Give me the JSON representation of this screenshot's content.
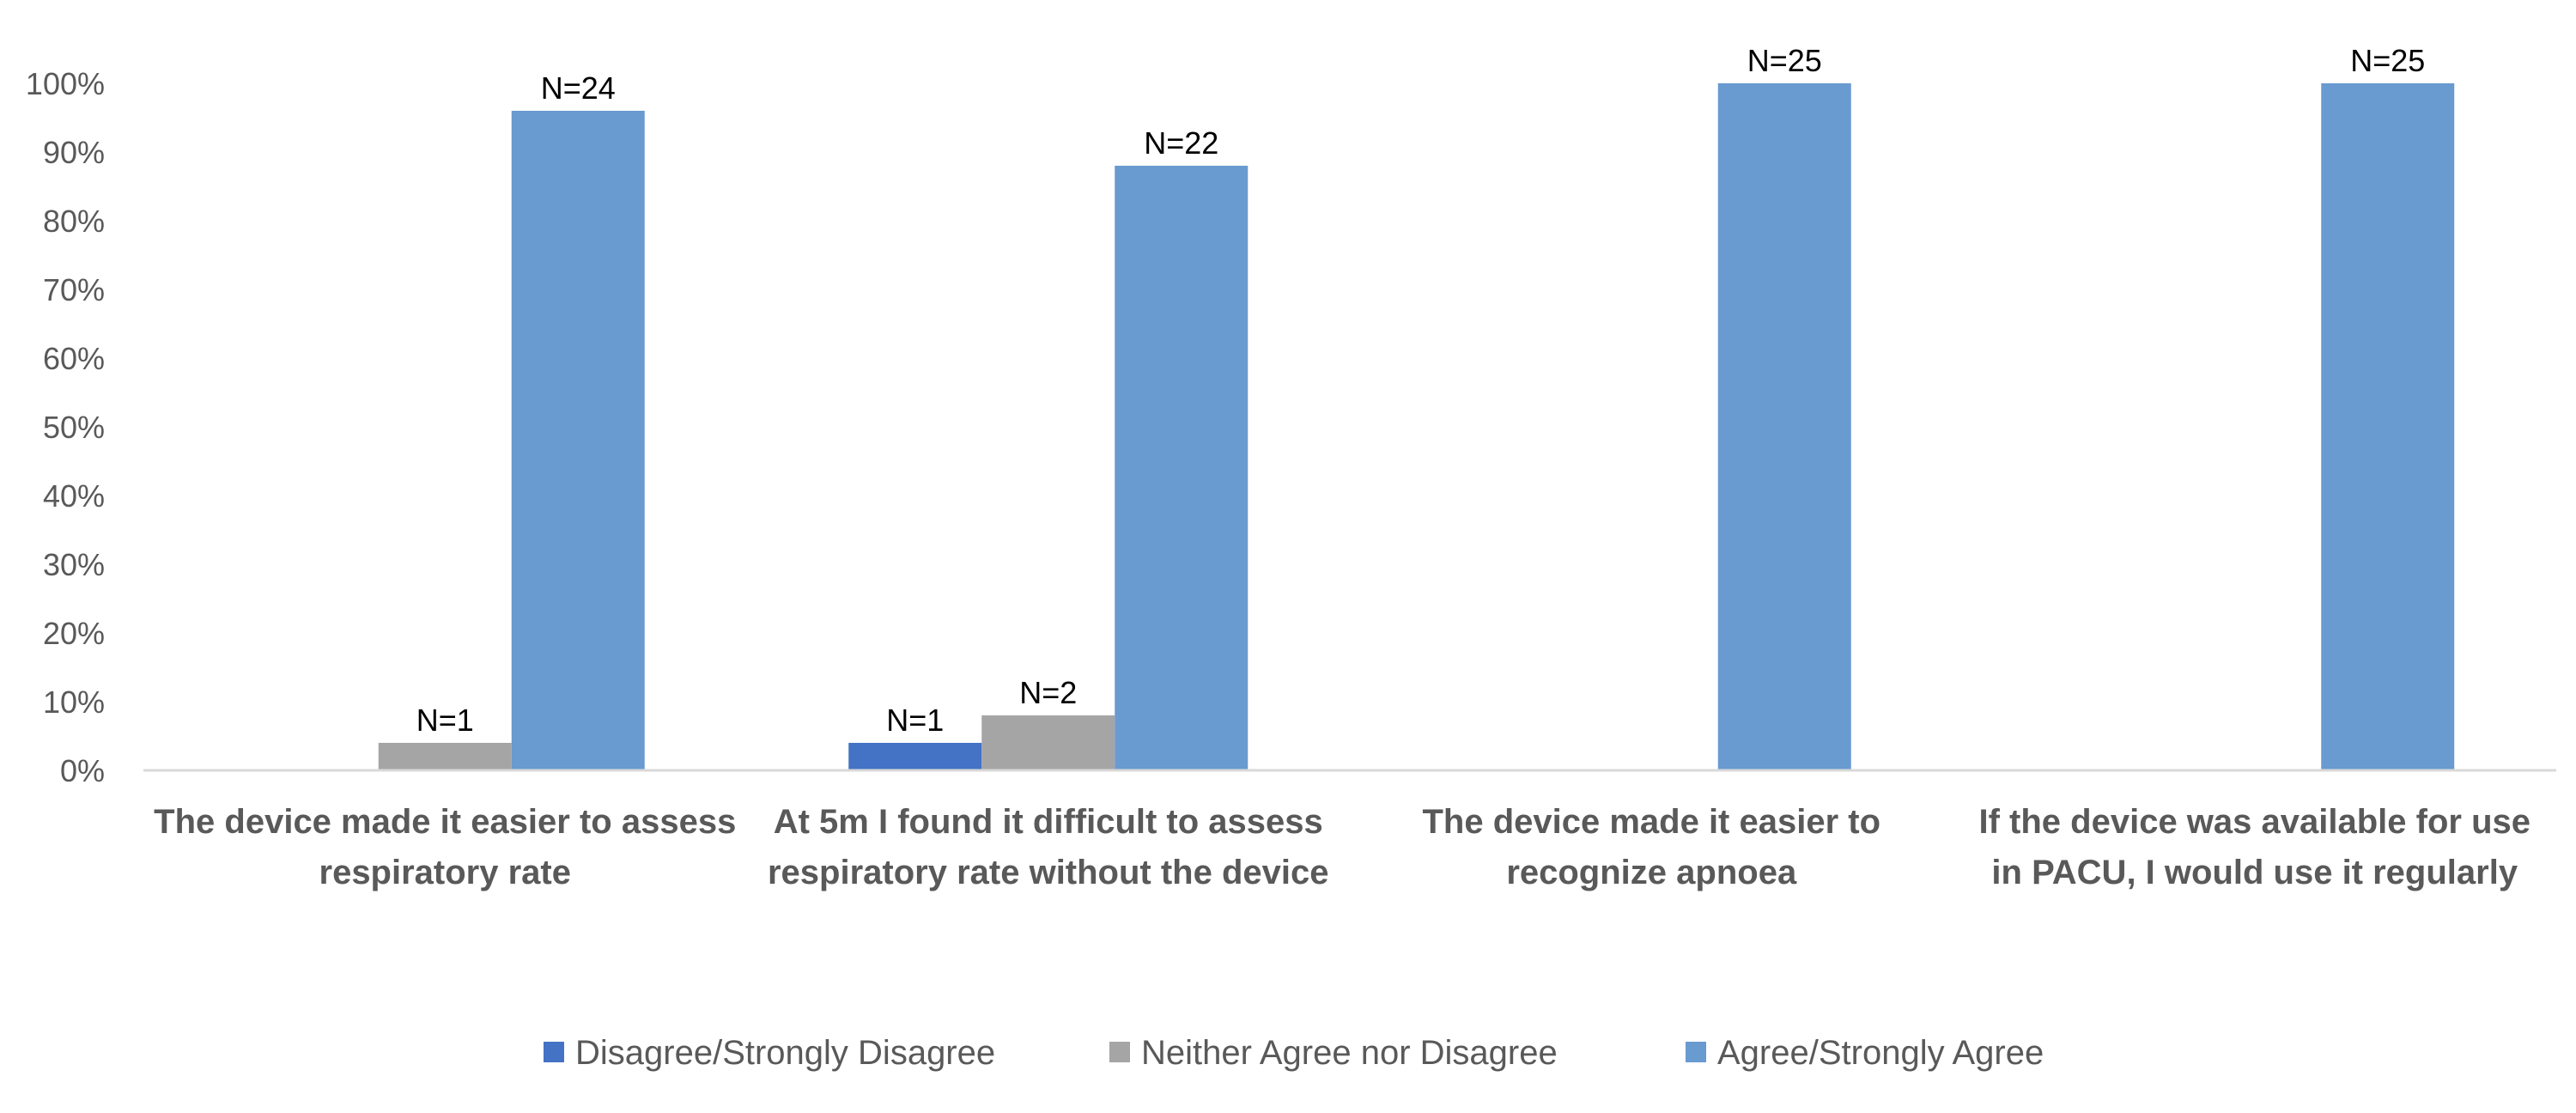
{
  "chart_data": {
    "type": "bar",
    "categories": [
      [
        "The device made it easier to assess",
        "respiratory rate"
      ],
      [
        "At 5m I found it difficult to assess",
        "respiratory rate without the device"
      ],
      [
        "The device made it easier to",
        "recognize apnoea"
      ],
      [
        "If the device was available for use",
        "in PACU, I would use it regularly"
      ]
    ],
    "series": [
      {
        "name": "Disagree/Strongly Disagree",
        "color": "#4472c4",
        "values": [
          0,
          4,
          0,
          0
        ],
        "labels": [
          "",
          "N=1",
          "",
          ""
        ]
      },
      {
        "name": "Neither Agree nor Disagree",
        "color": "#a5a5a5",
        "values": [
          4,
          8,
          0,
          0
        ],
        "labels": [
          "N=1",
          "N=2",
          "",
          ""
        ]
      },
      {
        "name": "Agree/Strongly Agree",
        "color": "#699ad0",
        "values": [
          96,
          88,
          100,
          100
        ],
        "labels": [
          "N=24",
          "N=22",
          "N=25",
          "N=25"
        ]
      }
    ],
    "yticks": [
      "0%",
      "10%",
      "20%",
      "30%",
      "40%",
      "50%",
      "60%",
      "70%",
      "80%",
      "90%",
      "100%"
    ],
    "ylim": [
      0,
      100
    ],
    "grid": false,
    "legend": "bottom"
  }
}
